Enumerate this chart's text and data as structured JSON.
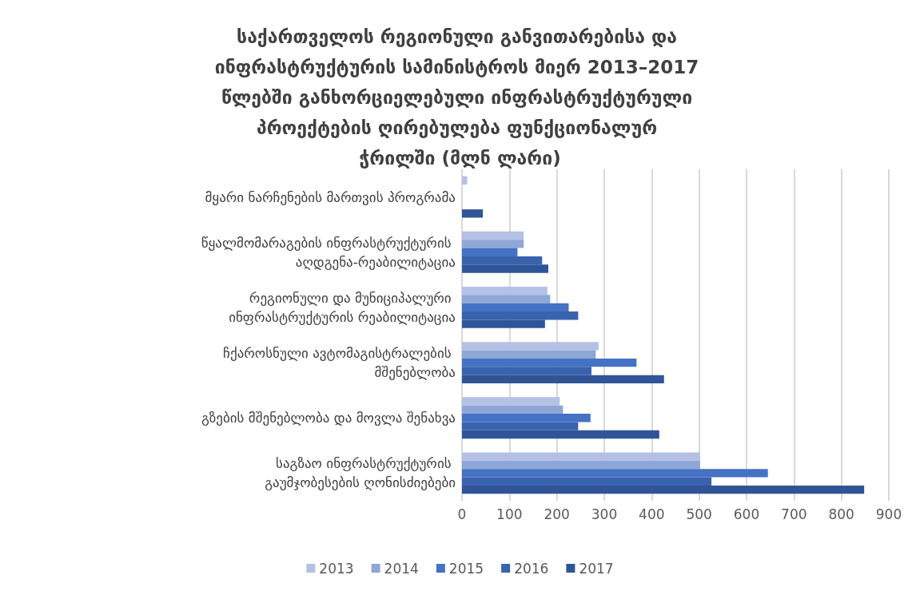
{
  "chart_data": {
    "type": "bar",
    "orientation": "horizontal",
    "title": "საქართველოს რეგიონული განვითარებისა და ინფრასტრუქტურის სამინისტროს მიერ 2013–2017 წლებში განხორციელებული ინფრასტრუქტურული პროექტების ღირებულება ფუნქციონალურ ჭრილში (მლნ ლარი)",
    "categories": [
      "მყარი ნარჩენების მართვის პროგრამა",
      "წყალმომარაგების ინფრასტრუქტურის აღდგენა-რეაბილიტაცია",
      "რეგიონული და მუნიციპალური ინფრასტრუქტურის რეაბილიტაცია",
      "ჩქაროსნული ავტომაგისტრალების მშენებლობა",
      "გზების მშენებლობა და მოვლა შენახვა",
      "საგზაო ინფრასტრუქტურის გაუმჯობესების ღონისძიებები"
    ],
    "series": [
      {
        "name": "2013",
        "color": "#b4c1e4",
        "values": [
          11,
          130,
          180,
          288,
          206,
          502
        ]
      },
      {
        "name": "2014",
        "color": "#8fa7d6",
        "values": [
          null,
          130,
          186,
          282,
          213,
          502
        ]
      },
      {
        "name": "2015",
        "color": "#4472c4",
        "values": [
          null,
          117,
          225,
          368,
          271,
          645
        ]
      },
      {
        "name": "2016",
        "color": "#3a63ad",
        "values": [
          null,
          169,
          245,
          273,
          245,
          526
        ]
      },
      {
        "name": "2017",
        "color": "#2f5597",
        "values": [
          44,
          182,
          175,
          426,
          416,
          848
        ]
      }
    ],
    "xlim": [
      0,
      900
    ],
    "xticks": [
      0,
      100,
      200,
      300,
      400,
      500,
      600,
      700,
      800,
      900
    ],
    "grid": "x",
    "legend": "bottom"
  }
}
